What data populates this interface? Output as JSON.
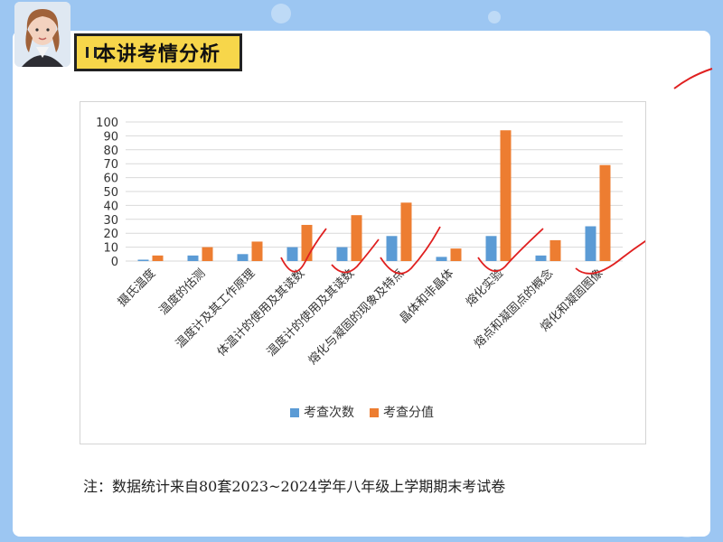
{
  "header": {
    "title": "本讲考情分析"
  },
  "chart_data": {
    "type": "bar",
    "categories": [
      "摄氏温度",
      "温度的估测",
      "温度计及其工作原理",
      "体温计的使用及其读数",
      "温度计的使用及其读数",
      "熔化与凝固的现象及特点",
      "晶体和非晶体",
      "熔化实验",
      "熔点和凝固点的概念",
      "熔化和凝固图像"
    ],
    "series": [
      {
        "name": "考查次数",
        "values": [
          1,
          4,
          5,
          10,
          10,
          18,
          3,
          18,
          4,
          25
        ]
      },
      {
        "name": "考查分值",
        "values": [
          4,
          10,
          14,
          26,
          33,
          42,
          9,
          94,
          15,
          69
        ]
      }
    ],
    "ylim": [
      0,
      100
    ],
    "yticks": [
      "0",
      "10",
      "20",
      "30",
      "40",
      "50",
      "60",
      "70",
      "80",
      "90",
      "100"
    ],
    "grid": true,
    "legend": "bottom",
    "colors": {
      "series1": "#5b9bd5",
      "series2": "#ed7d31",
      "grid": "#d9d9d9",
      "annotation": "#e02020"
    }
  },
  "footnote": "注：数据统计来自80套2023~2024学年八年级上学期期末考试卷"
}
